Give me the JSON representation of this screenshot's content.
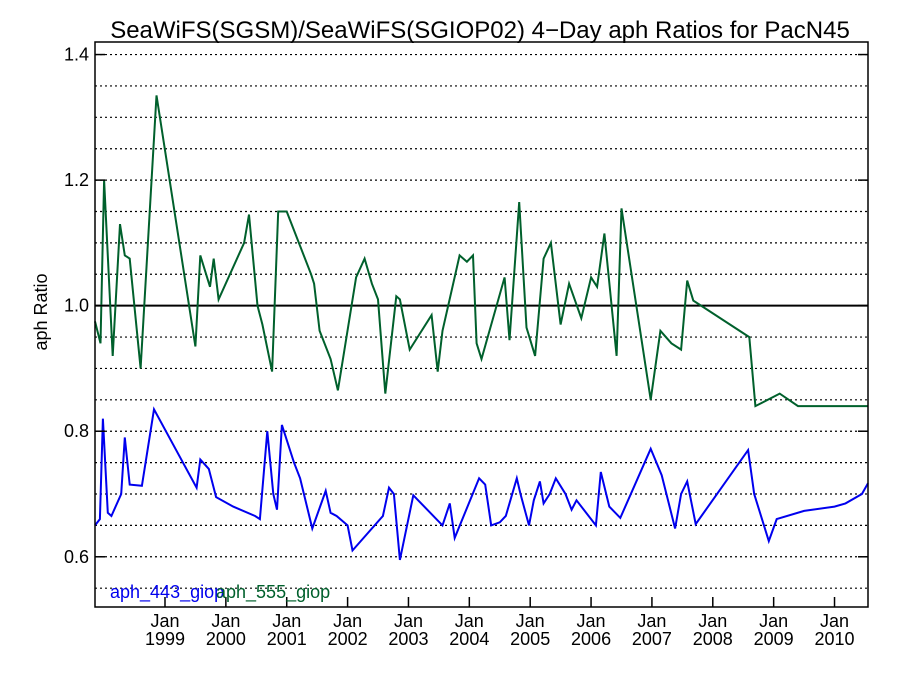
{
  "chart_data": {
    "type": "line",
    "title": "SeaWiFS(SGSM)/SeaWiFS(SGIOP02) 4−Day aph Ratios for PacN45",
    "ylabel": "aph Ratio",
    "xlabel": "",
    "xlim": [
      1997.85,
      2010.55
    ],
    "ylim": [
      0.52,
      1.42
    ],
    "y_ticks": [
      {
        "value": 0.6,
        "label": "0.6"
      },
      {
        "value": 0.8,
        "label": "0.8"
      },
      {
        "value": 1.0,
        "label": "1.0"
      },
      {
        "value": 1.2,
        "label": "1.2"
      },
      {
        "value": 1.4,
        "label": "1.4"
      }
    ],
    "x_ticks": [
      {
        "value": 1999,
        "month": "Jan",
        "year": "1999"
      },
      {
        "value": 2000,
        "month": "Jan",
        "year": "2000"
      },
      {
        "value": 2001,
        "month": "Jan",
        "year": "2001"
      },
      {
        "value": 2002,
        "month": "Jan",
        "year": "2002"
      },
      {
        "value": 2003,
        "month": "Jan",
        "year": "2003"
      },
      {
        "value": 2004,
        "month": "Jan",
        "year": "2004"
      },
      {
        "value": 2005,
        "month": "Jan",
        "year": "2005"
      },
      {
        "value": 2006,
        "month": "Jan",
        "year": "2006"
      },
      {
        "value": 2007,
        "month": "Jan",
        "year": "2007"
      },
      {
        "value": 2008,
        "month": "Jan",
        "year": "2008"
      },
      {
        "value": 2009,
        "month": "Jan",
        "year": "2009"
      },
      {
        "value": 2010,
        "month": "Jan",
        "year": "2010"
      }
    ],
    "grid": true,
    "reference_line": 1.0,
    "legend_position": "bottom-left",
    "series": [
      {
        "name": "aph_443_giop",
        "color": "#0000ee",
        "x": [
          1997.85,
          1997.93,
          1997.98,
          1998.06,
          1998.12,
          1998.28,
          1998.34,
          1998.42,
          1998.62,
          1998.82,
          1999.52,
          1999.58,
          1999.72,
          1999.84,
          2000.12,
          2000.48,
          2000.56,
          2000.68,
          2000.78,
          2000.84,
          2000.92,
          2001.12,
          2001.22,
          2001.42,
          2001.64,
          2001.72,
          2001.82,
          2002.0,
          2002.08,
          2002.58,
          2002.68,
          2002.76,
          2002.86,
          2003.08,
          2003.56,
          2003.68,
          2003.76,
          2004.16,
          2004.26,
          2004.36,
          2004.5,
          2004.6,
          2004.78,
          2004.84,
          2004.98,
          2005.06,
          2005.16,
          2005.22,
          2005.32,
          2005.42,
          2005.58,
          2005.68,
          2005.76,
          2006.08,
          2006.16,
          2006.3,
          2006.48,
          2006.98,
          2007.16,
          2007.38,
          2007.48,
          2007.58,
          2007.72,
          2008.58,
          2008.68,
          2008.92,
          2009.05,
          2009.5,
          2010.0,
          2010.18,
          2010.45,
          2010.55
        ],
        "values": [
          0.65,
          0.66,
          0.82,
          0.67,
          0.665,
          0.7,
          0.79,
          0.715,
          0.713,
          0.835,
          0.71,
          0.755,
          0.74,
          0.695,
          0.68,
          0.665,
          0.66,
          0.8,
          0.7,
          0.675,
          0.81,
          0.75,
          0.725,
          0.645,
          0.705,
          0.67,
          0.665,
          0.65,
          0.61,
          0.665,
          0.71,
          0.7,
          0.595,
          0.698,
          0.65,
          0.685,
          0.63,
          0.725,
          0.715,
          0.65,
          0.655,
          0.665,
          0.725,
          0.7,
          0.65,
          0.69,
          0.72,
          0.685,
          0.7,
          0.725,
          0.7,
          0.675,
          0.69,
          0.65,
          0.735,
          0.68,
          0.662,
          0.772,
          0.73,
          0.645,
          0.7,
          0.72,
          0.652,
          0.77,
          0.7,
          0.625,
          0.66,
          0.673,
          0.68,
          0.685,
          0.7,
          0.717
        ]
      },
      {
        "name": "aph_555_giop",
        "color": "#00602c",
        "x": [
          1997.85,
          1997.94,
          1998.0,
          1998.14,
          1998.26,
          1998.34,
          1998.42,
          1998.6,
          1998.86,
          1999.5,
          1999.58,
          1999.74,
          1999.8,
          1999.88,
          2000.3,
          2000.38,
          2000.52,
          2000.6,
          2000.76,
          2000.86,
          2001.0,
          2001.4,
          2001.45,
          2001.54,
          2001.72,
          2001.84,
          2002.14,
          2002.28,
          2002.4,
          2002.5,
          2002.62,
          2002.8,
          2002.86,
          2003.02,
          2003.38,
          2003.48,
          2003.56,
          2003.84,
          2003.96,
          2004.06,
          2004.12,
          2004.2,
          2004.58,
          2004.66,
          2004.82,
          2004.94,
          2005.08,
          2005.22,
          2005.34,
          2005.5,
          2005.64,
          2005.84,
          2006.0,
          2006.1,
          2006.22,
          2006.42,
          2006.5,
          2006.98,
          2007.14,
          2007.32,
          2007.48,
          2007.58,
          2007.68,
          2008.6,
          2008.7,
          2009.1,
          2009.4,
          2010.1,
          2010.44,
          2010.55
        ],
        "values": [
          0.975,
          0.94,
          1.2,
          0.92,
          1.13,
          1.08,
          1.075,
          0.9,
          1.335,
          0.935,
          1.08,
          1.03,
          1.075,
          1.01,
          1.1,
          1.145,
          1.0,
          0.97,
          0.895,
          1.15,
          1.15,
          1.05,
          1.035,
          0.96,
          0.915,
          0.865,
          1.045,
          1.075,
          1.035,
          1.01,
          0.86,
          1.015,
          1.01,
          0.93,
          0.985,
          0.895,
          0.96,
          1.08,
          1.07,
          1.08,
          0.94,
          0.915,
          1.045,
          0.945,
          1.165,
          0.965,
          0.92,
          1.075,
          1.1,
          0.97,
          1.035,
          0.98,
          1.045,
          1.03,
          1.115,
          0.92,
          1.155,
          0.85,
          0.96,
          0.94,
          0.93,
          1.04,
          1.008,
          0.95,
          0.84,
          0.86,
          0.84,
          0.84,
          0.84,
          0.84
        ]
      }
    ]
  }
}
